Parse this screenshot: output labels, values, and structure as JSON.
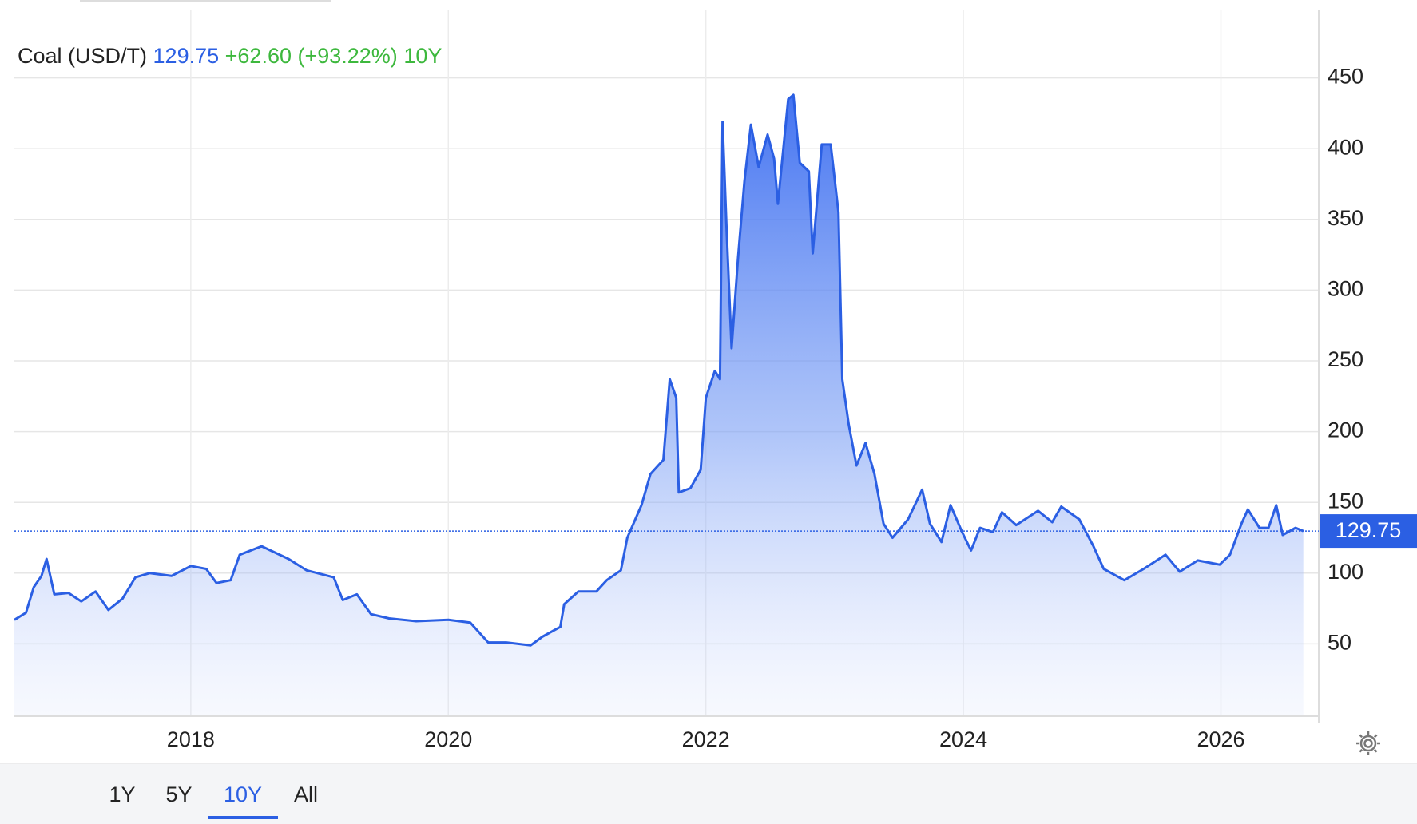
{
  "chart_data": {
    "type": "area",
    "title": "Coal (USD/T)",
    "last_value": 129.75,
    "change_label": "+62.60 (+93.22%)",
    "ranges": [
      "1Y",
      "5Y",
      "10Y",
      "All"
    ],
    "active_range": "10Y",
    "color": "#2b5fe3",
    "change_color": "#3db83d",
    "grid": true,
    "xlim": [
      2016.63,
      2026.76
    ],
    "xticks": [
      2018,
      2020,
      2022,
      2024,
      2026
    ],
    "ylim": [
      0,
      500
    ],
    "yticks": [
      50,
      100,
      150,
      200,
      250,
      300,
      350,
      400,
      450
    ],
    "x": [
      2016.63,
      2016.72,
      2016.78,
      2016.84,
      2016.88,
      2016.94,
      2017.05,
      2017.15,
      2017.26,
      2017.36,
      2017.47,
      2017.57,
      2017.68,
      2017.85,
      2018.0,
      2018.12,
      2018.2,
      2018.31,
      2018.38,
      2018.55,
      2018.76,
      2018.9,
      2019.11,
      2019.18,
      2019.29,
      2019.4,
      2019.54,
      2019.75,
      2020.0,
      2020.17,
      2020.31,
      2020.45,
      2020.64,
      2020.73,
      2020.87,
      2020.9,
      2021.01,
      2021.15,
      2021.23,
      2021.34,
      2021.39,
      2021.5,
      2021.57,
      2021.67,
      2021.72,
      2021.77,
      2021.79,
      2021.88,
      2021.96,
      2022.0,
      2022.07,
      2022.11,
      2022.13,
      2022.16,
      2022.2,
      2022.25,
      2022.3,
      2022.35,
      2022.41,
      2022.48,
      2022.53,
      2022.56,
      2022.64,
      2022.68,
      2022.73,
      2022.8,
      2022.83,
      2022.9,
      2022.97,
      2023.03,
      2023.06,
      2023.11,
      2023.17,
      2023.24,
      2023.31,
      2023.38,
      2023.45,
      2023.57,
      2023.68,
      2023.74,
      2023.83,
      2023.9,
      2023.99,
      2024.06,
      2024.13,
      2024.23,
      2024.3,
      2024.41,
      2024.58,
      2024.69,
      2024.76,
      2024.9,
      2025.01,
      2025.09,
      2025.25,
      2025.4,
      2025.57,
      2025.68,
      2025.82,
      2025.99,
      2026.07,
      2026.16,
      2026.21,
      2026.3,
      2026.37,
      2026.43,
      2026.48,
      2026.58,
      2026.64
    ],
    "values": [
      67,
      72,
      90,
      98,
      110,
      85,
      86,
      80,
      87,
      74,
      82,
      97,
      100,
      98,
      105,
      103,
      93,
      95,
      113,
      119,
      110,
      102,
      97,
      81,
      85,
      71,
      68,
      66,
      67,
      65,
      51,
      51,
      49,
      55,
      62,
      78,
      87,
      87,
      95,
      102,
      125,
      148,
      170,
      180,
      237,
      224,
      157,
      160,
      173,
      224,
      243,
      237,
      419,
      345,
      259,
      323,
      377,
      417,
      387,
      410,
      393,
      361,
      435,
      438,
      390,
      384,
      326,
      403,
      403,
      355,
      237,
      205,
      176,
      192,
      170,
      135,
      125,
      138,
      159,
      135,
      122,
      148,
      129,
      116,
      132,
      129,
      143,
      134,
      144,
      136,
      147,
      138,
      119,
      103,
      95,
      103,
      113,
      101,
      109,
      106,
      113,
      135,
      145,
      132,
      132,
      148,
      127,
      132,
      129.75
    ]
  }
}
